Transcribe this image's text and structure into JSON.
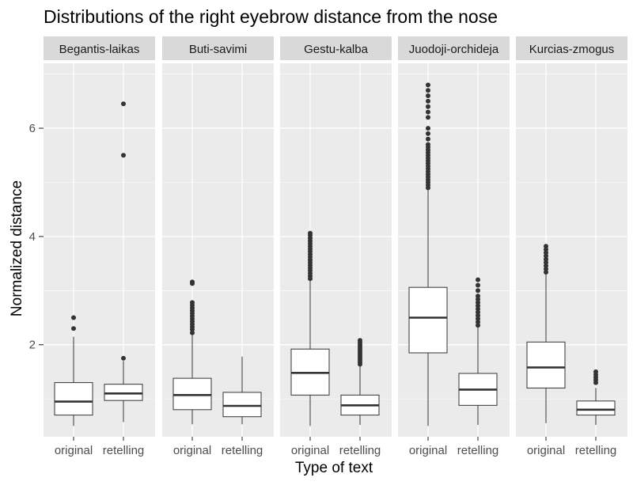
{
  "chart_data": {
    "type": "boxplot",
    "title": "Distributions of the right eyebrow distance from the nose",
    "xlabel": "Type of text",
    "ylabel": "Normalized distance",
    "ylim": [
      0.3,
      7.2
    ],
    "yticks": [
      2,
      4,
      6
    ],
    "categories": [
      "original",
      "retelling"
    ],
    "facets": [
      {
        "name": "Begantis-laikas",
        "boxes": [
          {
            "category": "original",
            "min": 0.5,
            "q1": 0.7,
            "median": 0.95,
            "q3": 1.3,
            "max": 2.15,
            "outliers": [
              2.3,
              2.5
            ]
          },
          {
            "category": "retelling",
            "min": 0.57,
            "q1": 0.97,
            "median": 1.1,
            "q3": 1.27,
            "max": 1.7,
            "outliers": [
              1.75,
              5.5,
              6.45
            ]
          }
        ]
      },
      {
        "name": "Buti-savimi",
        "boxes": [
          {
            "category": "original",
            "min": 0.53,
            "q1": 0.8,
            "median": 1.07,
            "q3": 1.38,
            "max": 2.2,
            "outliers": [
              2.22,
              2.28,
              2.33,
              2.38,
              2.43,
              2.48,
              2.53,
              2.58,
              2.63,
              2.68,
              2.73,
              2.78,
              3.13,
              3.16
            ]
          },
          {
            "category": "retelling",
            "min": 0.53,
            "q1": 0.67,
            "median": 0.87,
            "q3": 1.12,
            "max": 1.78,
            "outliers": []
          }
        ]
      },
      {
        "name": "Gestu-kalba",
        "boxes": [
          {
            "category": "original",
            "min": 0.5,
            "q1": 1.07,
            "median": 1.48,
            "q3": 1.92,
            "max": 3.2,
            "outliers": [
              3.22,
              3.27,
              3.32,
              3.37,
              3.42,
              3.47,
              3.52,
              3.57,
              3.62,
              3.67,
              3.72,
              3.77,
              3.82,
              3.87,
              3.92,
              3.97,
              4.02,
              4.06
            ]
          },
          {
            "category": "retelling",
            "min": 0.52,
            "q1": 0.7,
            "median": 0.88,
            "q3": 1.07,
            "max": 1.62,
            "outliers": [
              1.64,
              1.68,
              1.72,
              1.76,
              1.8,
              1.84,
              1.88,
              1.92,
              1.96,
              2.0,
              2.04,
              2.08
            ]
          }
        ]
      },
      {
        "name": "Juodoji-orchideja",
        "boxes": [
          {
            "category": "original",
            "min": 0.5,
            "q1": 1.85,
            "median": 2.5,
            "q3": 3.06,
            "max": 4.87,
            "outliers": [
              4.9,
              4.95,
              5.0,
              5.05,
              5.1,
              5.15,
              5.2,
              5.25,
              5.3,
              5.35,
              5.4,
              5.45,
              5.5,
              5.55,
              5.6,
              5.65,
              5.7,
              5.8,
              5.9,
              6.0,
              6.2,
              6.3,
              6.4,
              6.5,
              6.6,
              6.7,
              6.8
            ]
          },
          {
            "category": "retelling",
            "min": 0.52,
            "q1": 0.88,
            "median": 1.17,
            "q3": 1.47,
            "max": 2.33,
            "outliers": [
              2.36,
              2.42,
              2.48,
              2.54,
              2.6,
              2.66,
              2.72,
              2.78,
              2.84,
              2.9,
              3.0,
              3.1,
              3.2
            ]
          }
        ]
      },
      {
        "name": "Kurcias-zmogus",
        "boxes": [
          {
            "category": "original",
            "min": 0.55,
            "q1": 1.2,
            "median": 1.58,
            "q3": 2.05,
            "max": 3.3,
            "outliers": [
              3.34,
              3.4,
              3.46,
              3.52,
              3.58,
              3.64,
              3.7,
              3.76,
              3.82
            ]
          },
          {
            "category": "retelling",
            "min": 0.52,
            "q1": 0.7,
            "median": 0.8,
            "q3": 0.96,
            "max": 1.2,
            "outliers": [
              1.3,
              1.35,
              1.4,
              1.45,
              1.5
            ]
          }
        ]
      }
    ],
    "grid": true,
    "colors": {
      "panel_background": "#ebebeb",
      "strip_background": "#d9d9d9",
      "gridline": "#ffffff",
      "box_fill": "#ffffff",
      "box_stroke": "#333333",
      "outlier": "#333333"
    }
  }
}
